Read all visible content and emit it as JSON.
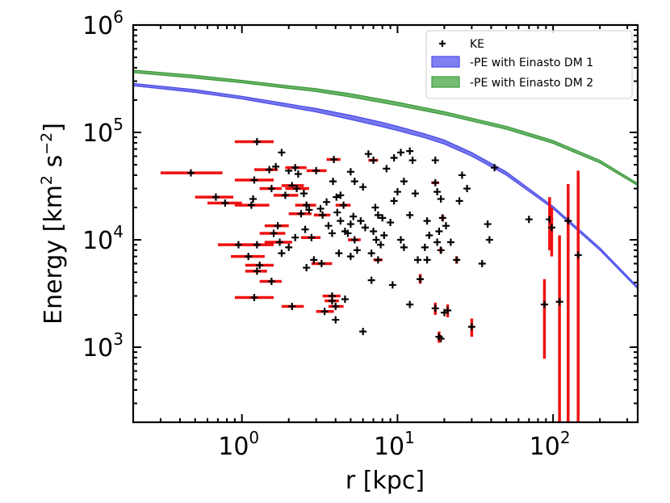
{
  "chart_data": {
    "type": "scatter",
    "xscale": "log",
    "yscale": "log",
    "xlim": [
      0.2,
      350
    ],
    "ylim": [
      200,
      1000000
    ],
    "xlabel": "r [kpc]",
    "ylabel_text": "Energy [km",
    "ylabel_exp1": "2",
    "ylabel_mid": " s",
    "ylabel_exp2": "−2",
    "ylabel_end": "]",
    "xticks": [
      {
        "value": 1,
        "base": "10",
        "exp": "0"
      },
      {
        "value": 10,
        "base": "10",
        "exp": "1"
      },
      {
        "value": 100,
        "base": "10",
        "exp": "2"
      }
    ],
    "yticks": [
      {
        "value": 1000,
        "base": "10",
        "exp": "3"
      },
      {
        "value": 10000,
        "base": "10",
        "exp": "4"
      },
      {
        "value": 100000,
        "base": "10",
        "exp": "5"
      },
      {
        "value": 1000000,
        "base": "10",
        "exp": "6"
      }
    ],
    "legend": {
      "position": "top-right",
      "entries": [
        {
          "label": "KE",
          "kind": "marker",
          "color": "#000000"
        },
        {
          "label": "-PE with Einasto DM 1",
          "kind": "band",
          "color": "#4a4ae8"
        },
        {
          "label": "-PE with Einasto DM 2",
          "kind": "band",
          "color": "#3a9a3a"
        }
      ]
    },
    "series": [
      {
        "name": "-PE with Einasto DM 1",
        "color": "#4a4ae8",
        "kind": "band",
        "x": [
          0.2,
          0.5,
          1,
          2,
          3,
          5,
          8,
          10,
          15,
          20,
          30,
          50,
          100,
          200,
          350
        ],
        "y_low": [
          272000,
          236000,
          205000,
          172000,
          155000,
          132000,
          113000,
          104000,
          89000,
          78000,
          60000,
          40000,
          19500,
          8000,
          3500
        ],
        "y_high": [
          286000,
          250000,
          217000,
          184000,
          167000,
          144000,
          124000,
          114000,
          97000,
          85000,
          65000,
          43000,
          20500,
          8400,
          3650
        ]
      },
      {
        "name": "-PE with Einasto DM 2",
        "color": "#3a9a3a",
        "kind": "band",
        "x": [
          0.2,
          0.5,
          1,
          2,
          3,
          5,
          10,
          20,
          50,
          100,
          200,
          350
        ],
        "y_low": [
          360000,
          320000,
          290000,
          257000,
          240000,
          214000,
          178000,
          146000,
          107000,
          79000,
          52000,
          32000
        ],
        "y_high": [
          380000,
          340000,
          305000,
          272000,
          255000,
          229000,
          191000,
          156000,
          114000,
          84000,
          55000,
          33500
        ]
      },
      {
        "name": "KE",
        "color": "#000000",
        "errcolor": "#ee1111",
        "points": [
          {
            "x": 0.47,
            "y": 42000,
            "xerr": [
              0.3,
              0.75
            ]
          },
          {
            "x": 0.68,
            "y": 25000,
            "xerr": [
              0.5,
              0.88
            ]
          },
          {
            "x": 0.78,
            "y": 22000,
            "xerr": [
              0.6,
              1.0
            ]
          },
          {
            "x": 1.25,
            "y": 82000,
            "xerr": [
              0.9,
              1.6
            ]
          },
          {
            "x": 1.2,
            "y": 36000,
            "xerr": [
              0.9,
              1.6
            ]
          },
          {
            "x": 1.15,
            "y": 21000,
            "xerr": [
              0.9,
              1.5
            ]
          },
          {
            "x": 1.18,
            "y": 24000
          },
          {
            "x": 0.95,
            "y": 9000,
            "xerr": [
              0.7,
              1.3
            ]
          },
          {
            "x": 1.1,
            "y": 7000,
            "xerr": [
              0.85,
              1.4
            ]
          },
          {
            "x": 1.25,
            "y": 9000,
            "xerr": [
              1.0,
              1.6
            ]
          },
          {
            "x": 1.3,
            "y": 5800,
            "xerr": [
              1.05,
              1.6
            ]
          },
          {
            "x": 1.25,
            "y": 5100,
            "xerr": [
              1.05,
              1.45
            ]
          },
          {
            "x": 1.2,
            "y": 2900,
            "xerr": [
              0.9,
              1.6
            ]
          },
          {
            "x": 1.5,
            "y": 45000,
            "xerr": [
              1.2,
              1.7
            ]
          },
          {
            "x": 1.65,
            "y": 48000
          },
          {
            "x": 1.55,
            "y": 30000,
            "xerr": [
              1.3,
              1.8
            ]
          },
          {
            "x": 1.7,
            "y": 13500,
            "xerr": [
              1.4,
              2.0
            ]
          },
          {
            "x": 1.6,
            "y": 11500,
            "xerr": [
              1.3,
              1.9
            ]
          },
          {
            "x": 1.75,
            "y": 9500,
            "xerr": [
              1.4,
              2.1
            ]
          },
          {
            "x": 1.8,
            "y": 7500
          },
          {
            "x": 1.55,
            "y": 4100,
            "xerr": [
              1.3,
              1.8
            ]
          },
          {
            "x": 1.8,
            "y": 65000
          },
          {
            "x": 1.9,
            "y": 26000,
            "xerr": [
              1.6,
              2.3
            ]
          },
          {
            "x": 2.0,
            "y": 44000
          },
          {
            "x": 2.2,
            "y": 47000,
            "xerr": [
              1.9,
              2.6
            ]
          },
          {
            "x": 2.3,
            "y": 41000
          },
          {
            "x": 2.1,
            "y": 32000,
            "xerr": [
              1.8,
              2.5
            ]
          },
          {
            "x": 2.25,
            "y": 30000,
            "xerr": [
              1.9,
              2.7
            ]
          },
          {
            "x": 2.5,
            "y": 27000
          },
          {
            "x": 2.4,
            "y": 17500,
            "xerr": [
              2.0,
              2.8
            ]
          },
          {
            "x": 2.6,
            "y": 21000,
            "xerr": [
              2.2,
              3.0
            ]
          },
          {
            "x": 2.7,
            "y": 19000
          },
          {
            "x": 2.55,
            "y": 12500
          },
          {
            "x": 2.2,
            "y": 10500
          },
          {
            "x": 2.0,
            "y": 8500
          },
          {
            "x": 2.8,
            "y": 10500,
            "xerr": [
              2.4,
              3.2
            ]
          },
          {
            "x": 3.0,
            "y": 44000,
            "xerr": [
              2.6,
              3.5
            ]
          },
          {
            "x": 3.2,
            "y": 19500
          },
          {
            "x": 3.3,
            "y": 17000,
            "xerr": [
              2.9,
              3.7
            ]
          },
          {
            "x": 3.5,
            "y": 22500
          },
          {
            "x": 3.6,
            "y": 13500
          },
          {
            "x": 3.8,
            "y": 11500
          },
          {
            "x": 3.25,
            "y": 6000,
            "xerr": [
              2.8,
              3.8
            ]
          },
          {
            "x": 2.9,
            "y": 6500
          },
          {
            "x": 2.6,
            "y": 5500
          },
          {
            "x": 2.1,
            "y": 2400,
            "xerr": [
              1.8,
              2.5
            ]
          },
          {
            "x": 3.4,
            "y": 2150,
            "xerr": [
              3.0,
              3.9
            ]
          },
          {
            "x": 3.8,
            "y": 3000,
            "xerr": [
              3.3,
              4.3
            ]
          },
          {
            "x": 3.8,
            "y": 2700,
            "xerr": [
              3.4,
              4.2
            ]
          },
          {
            "x": 4.0,
            "y": 2400,
            "xerr": [
              3.6,
              4.5
            ]
          },
          {
            "x": 4.0,
            "y": 1800
          },
          {
            "x": 4.6,
            "y": 2800
          },
          {
            "x": 3.9,
            "y": 56000,
            "xerr": [
              3.5,
              4.3
            ]
          },
          {
            "x": 3.85,
            "y": 35000
          },
          {
            "x": 4.05,
            "y": 25000
          },
          {
            "x": 4.3,
            "y": 26000
          },
          {
            "x": 4.5,
            "y": 21000,
            "xerr": [
              4.0,
              5.0
            ]
          },
          {
            "x": 4.1,
            "y": 18000
          },
          {
            "x": 4.3,
            "y": 15000
          },
          {
            "x": 4.6,
            "y": 12000
          },
          {
            "x": 4.8,
            "y": 11500
          },
          {
            "x": 4.2,
            "y": 7500
          },
          {
            "x": 5.0,
            "y": 7000
          },
          {
            "x": 5.3,
            "y": 10000,
            "xerr": [
              4.8,
              5.8
            ]
          },
          {
            "x": 5.5,
            "y": 8000
          },
          {
            "x": 5.0,
            "y": 14000
          },
          {
            "x": 5.2,
            "y": 16500
          },
          {
            "x": 5.8,
            "y": 15000
          },
          {
            "x": 6.2,
            "y": 13000
          },
          {
            "x": 5.0,
            "y": 43000
          },
          {
            "x": 5.3,
            "y": 35000
          },
          {
            "x": 6.0,
            "y": 31000
          },
          {
            "x": 6.5,
            "y": 63000
          },
          {
            "x": 7.0,
            "y": 55000,
            "xerr": [
              6.5,
              7.5
            ]
          },
          {
            "x": 7.2,
            "y": 20000
          },
          {
            "x": 7.5,
            "y": 17000
          },
          {
            "x": 8.0,
            "y": 16000
          },
          {
            "x": 7.0,
            "y": 12000
          },
          {
            "x": 7.3,
            "y": 10000
          },
          {
            "x": 7.8,
            "y": 9000
          },
          {
            "x": 8.2,
            "y": 11000
          },
          {
            "x": 7.5,
            "y": 6500,
            "xerr": [
              7.0,
              8.0
            ]
          },
          {
            "x": 6.8,
            "y": 7500
          },
          {
            "x": 6.8,
            "y": 4200
          },
          {
            "x": 6.0,
            "y": 1400
          },
          {
            "x": 8.5,
            "y": 46000
          },
          {
            "x": 9.5,
            "y": 58000
          },
          {
            "x": 10.5,
            "y": 65000
          },
          {
            "x": 11.0,
            "y": 35000
          },
          {
            "x": 10.0,
            "y": 28000
          },
          {
            "x": 9.5,
            "y": 23000
          },
          {
            "x": 9.0,
            "y": 14500
          },
          {
            "x": 10.5,
            "y": 10000
          },
          {
            "x": 11.0,
            "y": 8500
          },
          {
            "x": 9.3,
            "y": 3800
          },
          {
            "x": 12.0,
            "y": 67000
          },
          {
            "x": 12.5,
            "y": 55000
          },
          {
            "x": 13.0,
            "y": 27000
          },
          {
            "x": 12.0,
            "y": 17000
          },
          {
            "x": 13.5,
            "y": 6500
          },
          {
            "x": 12.0,
            "y": 2500
          },
          {
            "x": 14.0,
            "y": 4300,
            "yerr": [
              3900,
              4800
            ]
          },
          {
            "x": 15.5,
            "y": 15000
          },
          {
            "x": 16.0,
            "y": 11000
          },
          {
            "x": 15.0,
            "y": 8500
          },
          {
            "x": 15.5,
            "y": 6500
          },
          {
            "x": 17.5,
            "y": 34000,
            "xerr": [
              16.5,
              18.5
            ]
          },
          {
            "x": 18.0,
            "y": 28000
          },
          {
            "x": 19.0,
            "y": 24000
          },
          {
            "x": 17.5,
            "y": 55000
          },
          {
            "x": 18.5,
            "y": 12000
          },
          {
            "x": 18.0,
            "y": 9500
          },
          {
            "x": 19.0,
            "y": 8000,
            "yerr": [
              7500,
              8500
            ]
          },
          {
            "x": 19.5,
            "y": 16000,
            "yerr": [
              15000,
              17000
            ]
          },
          {
            "x": 20.5,
            "y": 13500
          },
          {
            "x": 17.5,
            "y": 2300,
            "yerr": [
              2000,
              2600
            ]
          },
          {
            "x": 20.0,
            "y": 2100
          },
          {
            "x": 19.0,
            "y": 1200
          },
          {
            "x": 21.0,
            "y": 2200,
            "yerr": [
              1900,
              2500
            ]
          },
          {
            "x": 18.5,
            "y": 1250,
            "yerr": [
              1100,
              1400
            ]
          },
          {
            "x": 22.0,
            "y": 9500
          },
          {
            "x": 25.0,
            "y": 23000
          },
          {
            "x": 26.0,
            "y": 40000
          },
          {
            "x": 28.0,
            "y": 30000
          },
          {
            "x": 24.0,
            "y": 6500,
            "yerr": [
              6000,
              7000
            ]
          },
          {
            "x": 30.0,
            "y": 1550,
            "yerr": [
              1250,
              1850
            ]
          },
          {
            "x": 35.0,
            "y": 6000
          },
          {
            "x": 38.0,
            "y": 14000
          },
          {
            "x": 39.0,
            "y": 10000
          },
          {
            "x": 42.0,
            "y": 47000
          },
          {
            "x": 70.0,
            "y": 15500
          },
          {
            "x": 88.0,
            "y": 2500,
            "yerr": [
              780,
              4300
            ]
          },
          {
            "x": 95.0,
            "y": 15500,
            "yerr": [
              8000,
              25000
            ]
          },
          {
            "x": 98.0,
            "y": 13000,
            "yerr": [
              7000,
              20000
            ]
          },
          {
            "x": 110.0,
            "y": 2650,
            "yerr": [
              200,
              11000
            ]
          },
          {
            "x": 125.0,
            "y": 15000,
            "yerr": [
              200,
              33000
            ]
          },
          {
            "x": 145.0,
            "y": 7200,
            "yerr": [
              200,
              44000
            ]
          }
        ]
      }
    ]
  }
}
